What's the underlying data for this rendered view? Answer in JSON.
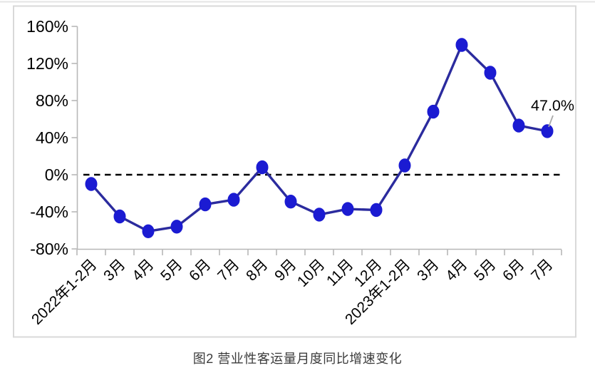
{
  "colors": {
    "series_line": "#2b2b9e",
    "marker_fill": "#1b1bd2",
    "axis_line": "#b8b8b8",
    "frame_border": "#d9d9d9",
    "top_rule": "#e4e4e4",
    "zero_line": "#000000",
    "tick_text": "#000000",
    "annotation_text": "#000000",
    "annotation_leader": "#a8a8a8",
    "caption_text": "#3c3c3c"
  },
  "chart_data": {
    "type": "line",
    "title": "图2 营业性客运量月度同比增速变化",
    "categories": [
      "2022年1-2月",
      "3月",
      "4月",
      "5月",
      "6月",
      "7月",
      "8月",
      "9月",
      "10月",
      "11月",
      "12月",
      "2023年1-2月",
      "3月",
      "4月",
      "5月",
      "6月",
      "7月"
    ],
    "values": [
      -10,
      -45,
      -61,
      -56,
      -32,
      -27,
      8,
      -29,
      -43,
      -37,
      -38,
      10,
      68,
      140,
      110,
      53,
      47
    ],
    "xlabel": "",
    "ylabel": "",
    "ylim": [
      -80,
      160
    ],
    "ytick_values": [
      160,
      120,
      80,
      40,
      0,
      -40,
      -80
    ],
    "ytick_labels": [
      "160%",
      "120%",
      "80%",
      "40%",
      "0%",
      "-40%",
      "-80%"
    ],
    "grid": false,
    "legend": "none",
    "zero_reference_line": "dashed",
    "marker": "circle",
    "annotation": {
      "text": "47.0%",
      "index": 16,
      "value": 47.0
    }
  }
}
